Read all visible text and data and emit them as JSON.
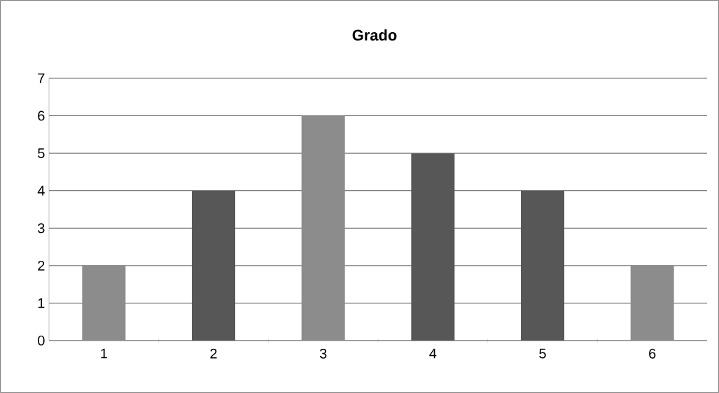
{
  "chart_data": {
    "type": "bar",
    "title": "Grado",
    "categories": [
      "1",
      "2",
      "3",
      "4",
      "5",
      "6"
    ],
    "values": [
      2,
      4,
      6,
      5,
      4,
      2
    ],
    "colors": [
      "#8c8c8c",
      "#575757",
      "#8c8c8c",
      "#575757",
      "#575757",
      "#8c8c8c"
    ],
    "ylim": [
      0,
      7
    ],
    "yticks": [
      0,
      1,
      2,
      3,
      4,
      5,
      6,
      7
    ],
    "grid": "y"
  }
}
